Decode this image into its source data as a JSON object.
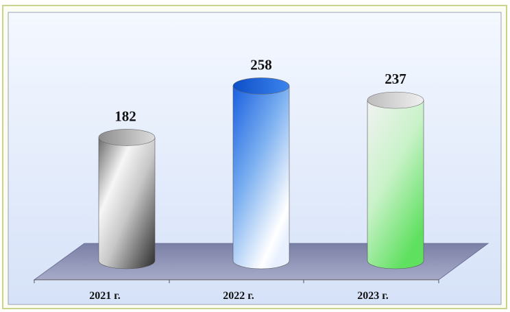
{
  "chart_data": {
    "type": "bar",
    "categories": [
      "2021 г.",
      "2022 г.",
      "2023 г."
    ],
    "values": [
      182,
      258,
      237
    ],
    "title": "",
    "xlabel": "",
    "ylabel": "",
    "ylim": [
      0,
      280
    ],
    "grid": false,
    "legend": "none",
    "bar_shape": "cylinder"
  },
  "colors": {
    "frame_border": "#c8d38a",
    "plot_background": "#dde8fb",
    "floor": "#8e93b5",
    "bars": [
      "#5a5a5a",
      "#1f6fe0",
      "#66e066"
    ]
  }
}
